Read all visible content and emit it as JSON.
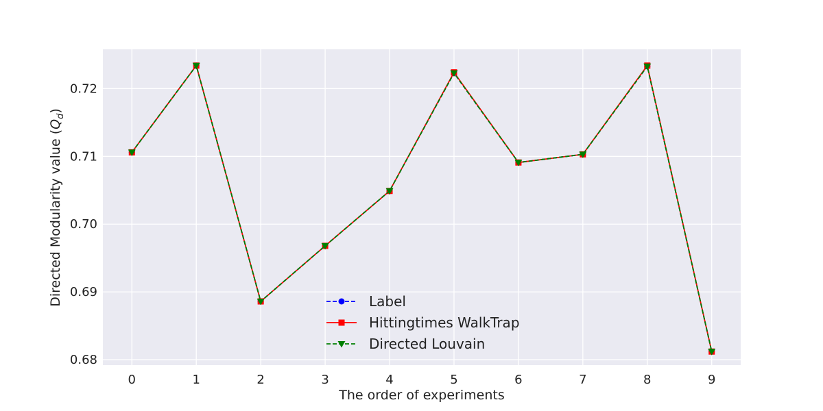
{
  "chart_data": {
    "type": "line",
    "title": "",
    "xlabel": "The order of experiments",
    "ylabel_main": "Directed Modularity value (",
    "ylabel_sym": "Q",
    "ylabel_sub": "d",
    "ylabel_close": ")",
    "x": [
      0,
      1,
      2,
      3,
      4,
      5,
      6,
      7,
      8,
      9
    ],
    "xticks": [
      "0",
      "1",
      "2",
      "3",
      "4",
      "5",
      "6",
      "7",
      "8",
      "9"
    ],
    "yticks": [
      "0.68",
      "0.69",
      "0.70",
      "0.71",
      "0.72"
    ],
    "ylim": [
      0.6792,
      0.7258
    ],
    "xlim": [
      -0.45,
      9.45
    ],
    "grid": true,
    "legend_position": "lower-center",
    "colors": {
      "plot_bg": "#eaeaf2",
      "grid": "#ffffff"
    },
    "series": [
      {
        "name": "Label",
        "color": "#0000ff",
        "marker": "circle",
        "linestyle": "dashed",
        "values": [
          0.7106,
          0.7234,
          0.6886,
          0.6968,
          0.7049,
          0.7223,
          0.7091,
          0.7103,
          0.7233,
          0.6812
        ]
      },
      {
        "name": "Hittingtimes WalkTrap",
        "color": "#ff0000",
        "marker": "square",
        "linestyle": "solid",
        "values": [
          0.7106,
          0.7234,
          0.6886,
          0.6968,
          0.7049,
          0.7224,
          0.7091,
          0.7103,
          0.7234,
          0.6812
        ]
      },
      {
        "name": "Directed Louvain",
        "color": "#008000",
        "marker": "triangle-down",
        "linestyle": "dashed",
        "values": [
          0.7106,
          0.7234,
          0.6886,
          0.6968,
          0.7049,
          0.7223,
          0.7091,
          0.7103,
          0.7233,
          0.6812
        ]
      }
    ]
  }
}
